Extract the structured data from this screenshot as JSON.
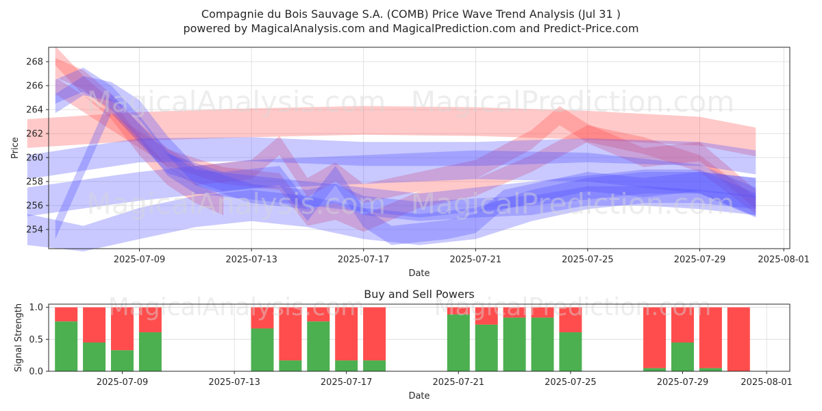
{
  "header": {
    "title_line1": "Compagnie du Bois Sauvage S.A. (COMB) Price Wave Trend Analysis (Jul 31 )",
    "title_line2": "powered by MagicalAnalysis.com and MagicalPrediction.com and Predict-Price.com"
  },
  "watermarks": [
    "MagicalAnalysis.com",
    "MagicalPrediction.com"
  ],
  "colors": {
    "red": "#ff4d4d",
    "blue": "#4d4dff",
    "buy": "#4caf50",
    "sell": "#ff4d4d"
  },
  "chart_data": [
    {
      "type": "area",
      "title": "",
      "xlabel": "Date",
      "ylabel": "Price",
      "x_ticks": [
        "2025-07-09",
        "2025-07-13",
        "2025-07-17",
        "2025-07-21",
        "2025-07-25",
        "2025-07-29",
        "2025-08-01"
      ],
      "y_ticks": [
        254,
        256,
        258,
        260,
        262,
        264,
        266,
        268
      ],
      "xlim": [
        "2025-07-05",
        "2025-08-01"
      ],
      "ylim": [
        252.4,
        269.2
      ],
      "grid": true,
      "bands": [
        {
          "color": "red",
          "x": [
            "2025-07-05",
            "2025-07-09",
            "2025-07-13",
            "2025-07-17",
            "2025-07-21",
            "2025-07-25",
            "2025-07-29",
            "2025-07-31"
          ],
          "center": [
            262.0,
            262.6,
            262.9,
            263.1,
            263.0,
            262.7,
            262.2,
            261.3
          ],
          "half_width": 1.2
        },
        {
          "color": "red",
          "x": [
            "2025-07-06",
            "2025-07-07",
            "2025-07-08",
            "2025-07-09",
            "2025-07-10",
            "2025-07-11",
            "2025-07-12"
          ],
          "center": [
            268.5,
            266.0,
            264.0,
            261.0,
            258.5,
            257.0,
            256.0
          ],
          "half_width": 0.8
        },
        {
          "color": "red",
          "x": [
            "2025-07-06",
            "2025-07-07",
            "2025-07-08",
            "2025-07-09",
            "2025-07-10",
            "2025-07-11",
            "2025-07-13",
            "2025-07-14",
            "2025-07-15",
            "2025-07-16",
            "2025-07-17",
            "2025-07-19",
            "2025-07-21",
            "2025-07-23",
            "2025-07-24",
            "2025-07-25",
            "2025-07-27",
            "2025-07-29",
            "2025-07-31"
          ],
          "center": [
            267.5,
            266.5,
            264.5,
            262.0,
            260.0,
            258.5,
            259.0,
            261.0,
            257.5,
            258.8,
            257.0,
            258.0,
            259.0,
            261.5,
            263.5,
            262.0,
            260.0,
            260.5,
            256.5
          ],
          "half_width": 0.8
        },
        {
          "color": "red",
          "x": [
            "2025-07-06",
            "2025-07-08",
            "2025-07-10",
            "2025-07-12",
            "2025-07-14",
            "2025-07-15",
            "2025-07-16",
            "2025-07-17",
            "2025-07-19",
            "2025-07-21",
            "2025-07-23",
            "2025-07-25",
            "2025-07-27",
            "2025-07-29",
            "2025-07-31"
          ],
          "center": [
            266.0,
            263.0,
            260.0,
            258.5,
            258.0,
            255.0,
            255.5,
            254.5,
            256.5,
            257.5,
            259.5,
            262.0,
            261.0,
            259.5,
            256.0
          ],
          "half_width": 0.7
        },
        {
          "color": "blue",
          "x": [
            "2025-07-05",
            "2025-07-09",
            "2025-07-13",
            "2025-07-17",
            "2025-07-21",
            "2025-07-25",
            "2025-07-29",
            "2025-07-31"
          ],
          "center": [
            259.2,
            260.6,
            260.7,
            260.3,
            260.3,
            260.6,
            260.3,
            259.6
          ],
          "half_width": 1.0
        },
        {
          "color": "blue",
          "x": [
            "2025-07-05",
            "2025-07-09",
            "2025-07-13",
            "2025-07-17",
            "2025-07-21",
            "2025-07-25",
            "2025-07-29",
            "2025-07-31"
          ],
          "center": [
            256.3,
            257.6,
            258.6,
            259.0,
            259.4,
            259.2,
            258.2,
            256.3
          ],
          "half_width": 1.2
        },
        {
          "color": "blue",
          "x": [
            "2025-07-05",
            "2025-07-07",
            "2025-07-09",
            "2025-07-11",
            "2025-07-13",
            "2025-07-15",
            "2025-07-17",
            "2025-07-19",
            "2025-07-21",
            "2025-07-23",
            "2025-07-25",
            "2025-07-27",
            "2025-07-29",
            "2025-07-31"
          ],
          "center": [
            254.0,
            253.0,
            254.5,
            255.5,
            256.0,
            255.5,
            254.5,
            254.0,
            254.5,
            256.0,
            257.0,
            257.5,
            257.5,
            257.0
          ],
          "half_width": 1.3
        },
        {
          "color": "blue",
          "x": [
            "2025-07-06",
            "2025-07-07",
            "2025-07-08",
            "2025-07-09",
            "2025-07-10",
            "2025-07-11",
            "2025-07-13",
            "2025-07-15",
            "2025-07-17",
            "2025-07-19",
            "2025-07-21",
            "2025-07-23",
            "2025-07-25",
            "2025-07-27",
            "2025-07-29",
            "2025-07-31"
          ],
          "center": [
            265.5,
            266.5,
            265.0,
            262.5,
            259.5,
            258.0,
            257.5,
            257.0,
            256.5,
            256.0,
            256.5,
            257.0,
            257.5,
            258.0,
            258.0,
            256.0
          ],
          "half_width": 1.0
        },
        {
          "color": "blue",
          "x": [
            "2025-07-06",
            "2025-07-07",
            "2025-07-08",
            "2025-07-09",
            "2025-07-10",
            "2025-07-11",
            "2025-07-13",
            "2025-07-15",
            "2025-07-16",
            "2025-07-17",
            "2025-07-19",
            "2025-07-21",
            "2025-07-23",
            "2025-07-25",
            "2025-07-27",
            "2025-07-29",
            "2025-07-31"
          ],
          "center": [
            264.5,
            266.0,
            265.5,
            264.0,
            261.0,
            258.5,
            257.0,
            256.5,
            257.0,
            256.0,
            255.5,
            255.8,
            256.0,
            256.8,
            256.8,
            256.5,
            256.0
          ],
          "half_width": 0.8
        },
        {
          "color": "blue",
          "x": [
            "2025-07-06",
            "2025-07-08",
            "2025-07-10",
            "2025-07-12",
            "2025-07-14",
            "2025-07-15",
            "2025-07-16",
            "2025-07-17",
            "2025-07-18",
            "2025-07-20",
            "2025-07-21",
            "2025-07-22",
            "2025-07-24",
            "2025-07-25",
            "2025-07-27",
            "2025-07-29",
            "2025-07-31"
          ],
          "center": [
            254.0,
            264.5,
            259.5,
            258.0,
            258.5,
            255.5,
            258.5,
            255.0,
            253.5,
            254.0,
            254.5,
            256.5,
            257.5,
            258.0,
            257.5,
            258.0,
            257.5
          ],
          "half_width": 0.8
        }
      ]
    },
    {
      "type": "bar",
      "title": "Buy and Sell Powers",
      "xlabel": "Date",
      "ylabel": "Signal Strength",
      "x_ticks": [
        "2025-07-09",
        "2025-07-13",
        "2025-07-17",
        "2025-07-21",
        "2025-07-25",
        "2025-07-29",
        "2025-08-01"
      ],
      "y_ticks": [
        "0.0",
        "0.5",
        "1.0"
      ],
      "ylim": [
        0,
        1.05
      ],
      "grid": true,
      "categories": [
        "2025-07-07",
        "2025-07-08",
        "2025-07-09",
        "2025-07-10",
        "2025-07-14",
        "2025-07-15",
        "2025-07-16",
        "2025-07-17",
        "2025-07-18",
        "2025-07-21",
        "2025-07-22",
        "2025-07-23",
        "2025-07-24",
        "2025-07-25",
        "2025-07-28",
        "2025-07-29",
        "2025-07-30",
        "2025-07-31"
      ],
      "series": [
        {
          "name": "Buy",
          "values": [
            0.78,
            0.45,
            0.33,
            0.61,
            0.67,
            0.17,
            0.78,
            0.17,
            0.17,
            0.89,
            0.73,
            0.84,
            0.84,
            0.61,
            0.05,
            0.45,
            0.05,
            0.0
          ]
        },
        {
          "name": "Sell",
          "values": [
            0.22,
            0.55,
            0.67,
            0.39,
            0.33,
            0.83,
            0.22,
            0.83,
            0.83,
            0.11,
            0.27,
            0.16,
            0.16,
            0.39,
            0.95,
            0.55,
            0.95,
            1.0
          ]
        }
      ]
    }
  ]
}
